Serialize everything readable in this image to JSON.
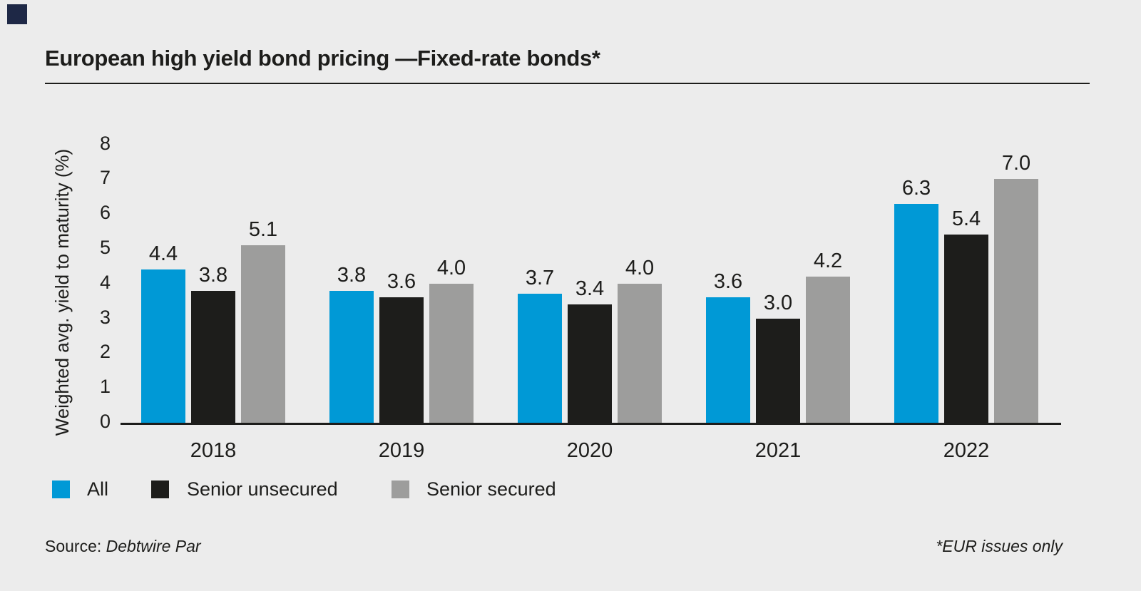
{
  "colors": {
    "background": "#ececec",
    "text": "#1d1d1b",
    "axis": "#1d1d1b",
    "corner_mark": "#1e2846"
  },
  "chart_data": {
    "type": "bar",
    "title": "European high yield bond pricing —Fixed-rate bonds*",
    "categories": [
      "2018",
      "2019",
      "2020",
      "2021",
      "2022"
    ],
    "series": [
      {
        "name": "All",
        "color": "#0099d6",
        "values": [
          4.4,
          3.8,
          3.7,
          3.6,
          6.3
        ]
      },
      {
        "name": "Senior unsecured",
        "color": "#1d1d1b",
        "values": [
          3.8,
          3.6,
          3.4,
          3.0,
          5.4
        ]
      },
      {
        "name": "Senior secured",
        "color": "#9d9d9c",
        "values": [
          5.1,
          4.0,
          4.0,
          4.2,
          7.0
        ]
      }
    ],
    "ylabel": "Weighted avg. yield to maturity (%)",
    "ylim": [
      0,
      8
    ],
    "yticks": [
      0,
      1,
      2,
      3,
      4,
      5,
      6,
      7,
      8
    ],
    "grid": false,
    "legend_position": "bottom-left",
    "value_labels": true
  },
  "footer": {
    "source_label": "Source:",
    "source_value": "Debtwire Par",
    "footnote": "*EUR issues only"
  }
}
